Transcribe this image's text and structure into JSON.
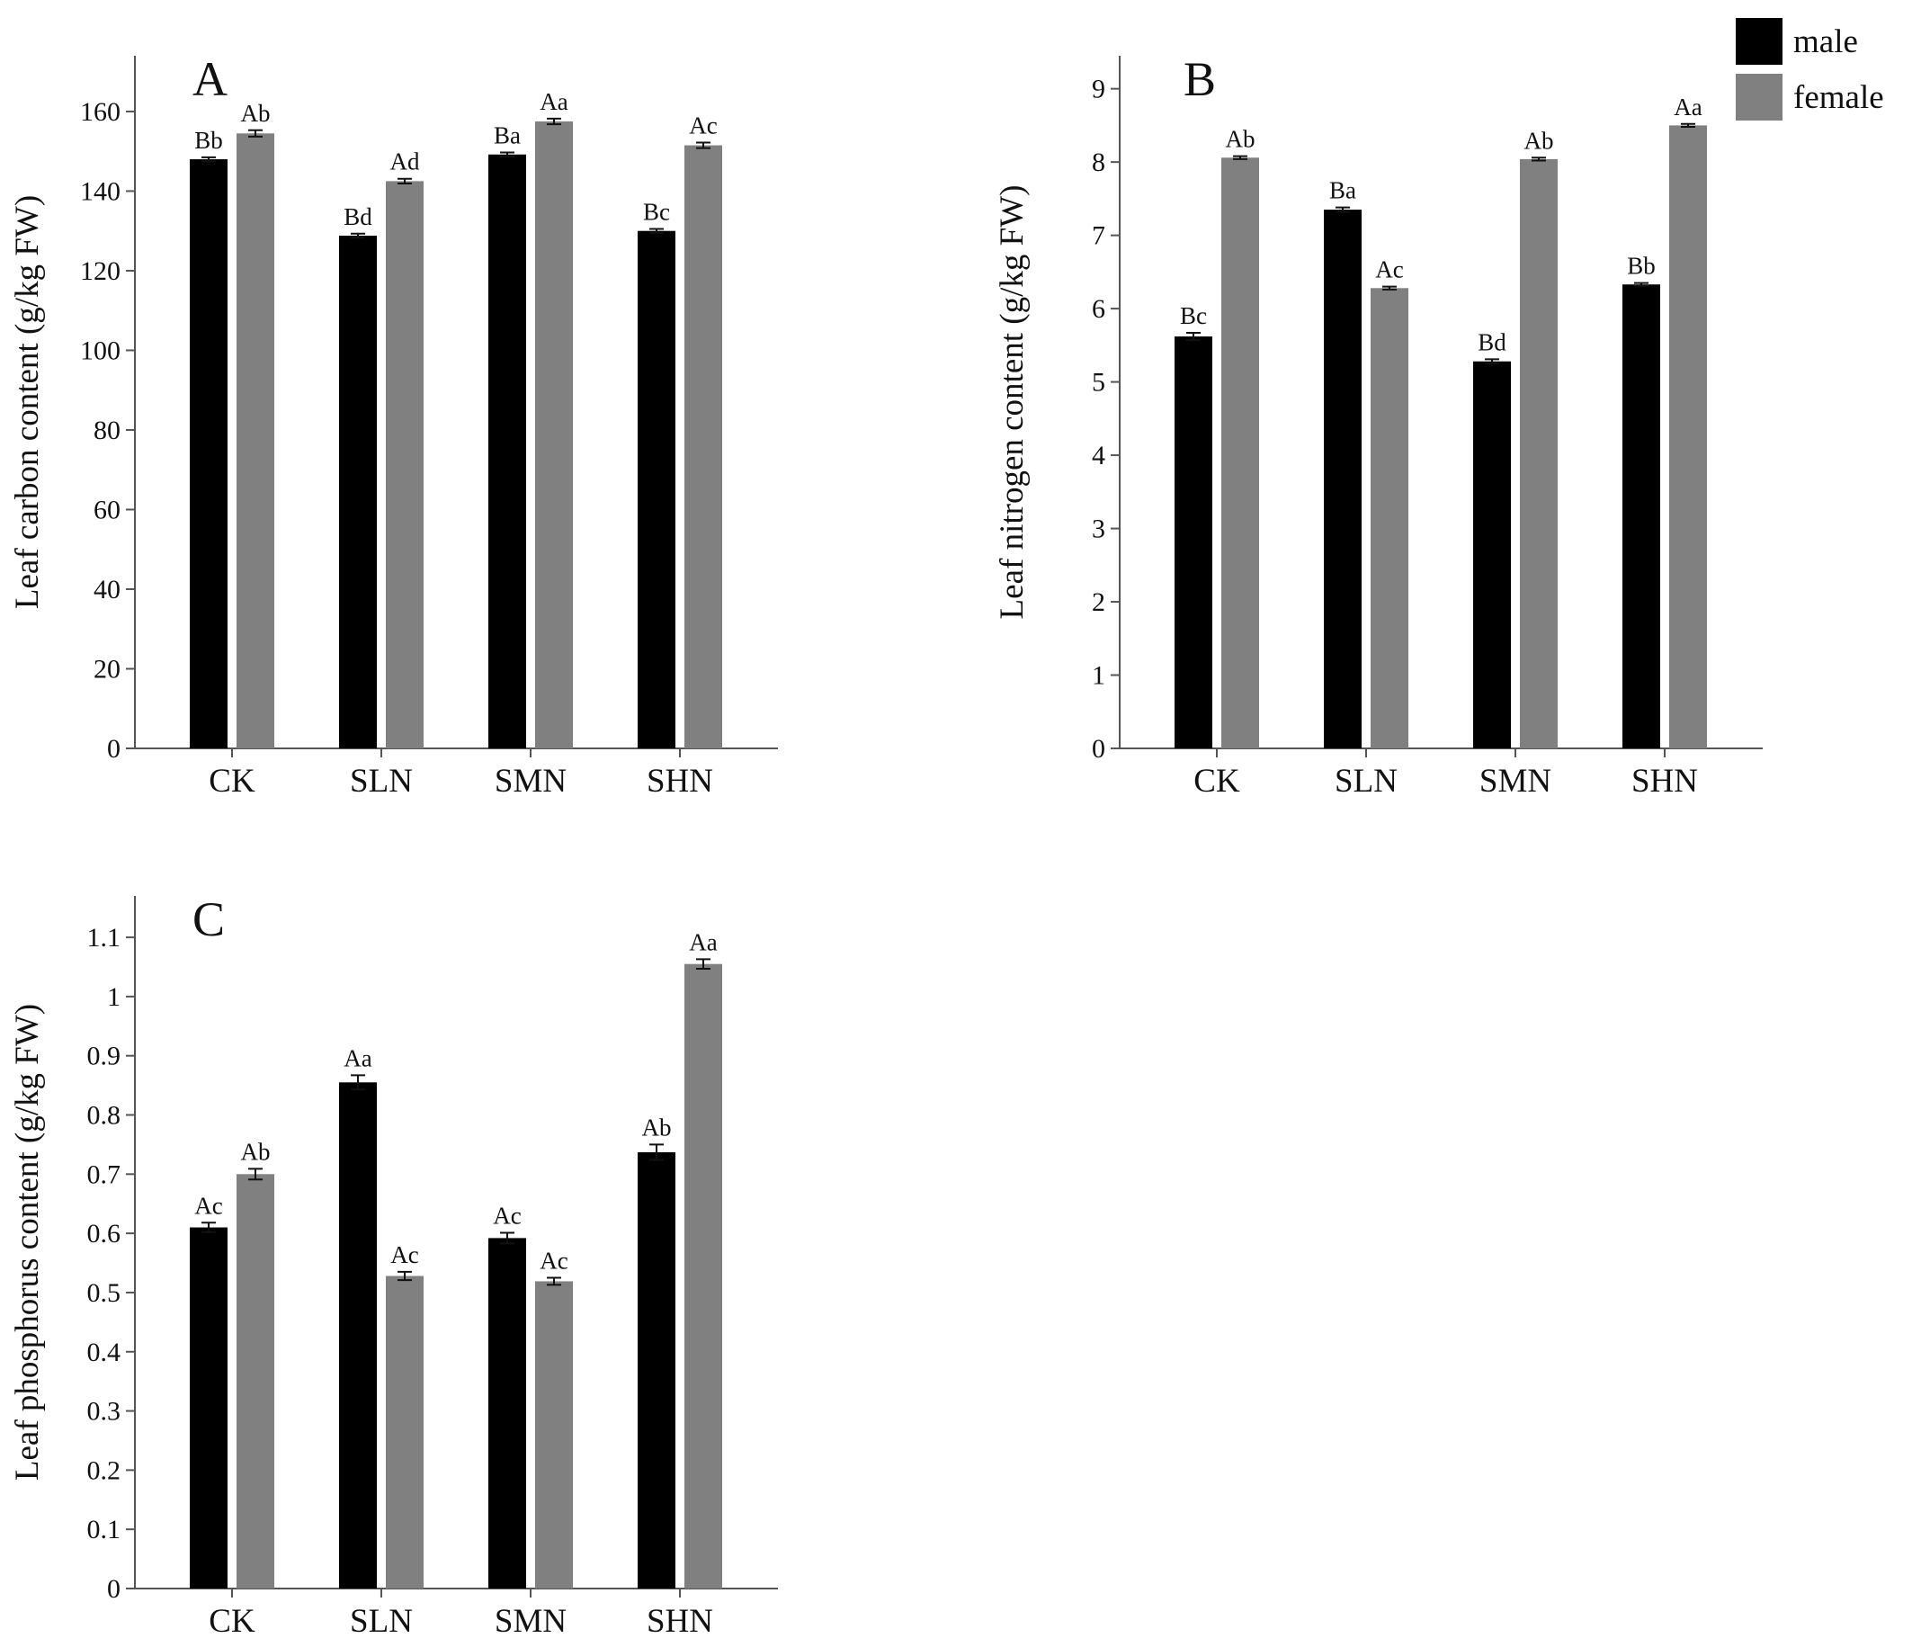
{
  "legend": {
    "entries": [
      {
        "label": "male",
        "color": "#000000"
      },
      {
        "label": "female",
        "color": "#808080"
      }
    ],
    "placement": "top-right"
  },
  "chart_data": [
    {
      "panel": "A",
      "type": "bar",
      "categories": [
        "CK",
        "SLN",
        "SMN",
        "SHN"
      ],
      "series": [
        {
          "name": "male",
          "color": "#000000",
          "values": [
            148,
            128.8,
            149.2,
            130
          ],
          "errors": [
            0.5,
            0.5,
            0.5,
            0.5
          ],
          "labels": [
            "Bb",
            "Bd",
            "Ba",
            "Bc"
          ]
        },
        {
          "name": "female",
          "color": "#808080",
          "values": [
            154.5,
            142.5,
            157.5,
            151.5
          ],
          "errors": [
            0.8,
            0.6,
            0.7,
            0.7
          ],
          "labels": [
            "Ab",
            "Ad",
            "Aa",
            "Ac"
          ]
        }
      ],
      "ylabel": "Leaf carbon content (g/kg FW)",
      "ylim": [
        0,
        174
      ],
      "yticks": [
        "0",
        "20",
        "40",
        "60",
        "80",
        "100",
        "120",
        "140",
        "160"
      ],
      "ytick_values": [
        0,
        20,
        40,
        60,
        80,
        100,
        120,
        140,
        160
      ]
    },
    {
      "panel": "B",
      "type": "bar",
      "categories": [
        "CK",
        "SLN",
        "SMN",
        "SHN"
      ],
      "series": [
        {
          "name": "male",
          "color": "#000000",
          "values": [
            5.62,
            7.35,
            5.28,
            6.33
          ],
          "errors": [
            0.05,
            0.03,
            0.03,
            0.02
          ],
          "labels": [
            "Bc",
            "Ba",
            "Bd",
            "Bb"
          ]
        },
        {
          "name": "female",
          "color": "#808080",
          "values": [
            8.06,
            6.28,
            8.04,
            8.5
          ],
          "errors": [
            0.02,
            0.02,
            0.02,
            0.02
          ],
          "labels": [
            "Ab",
            "Ac",
            "Ab",
            "Aa"
          ]
        }
      ],
      "ylabel": "Leaf nitrogen content (g/kg FW)",
      "ylim": [
        0,
        9.45
      ],
      "yticks": [
        "0",
        "1",
        "2",
        "3",
        "4",
        "5",
        "6",
        "7",
        "8",
        "9"
      ],
      "ytick_values": [
        0,
        1,
        2,
        3,
        4,
        5,
        6,
        7,
        8,
        9
      ]
    },
    {
      "panel": "C",
      "type": "bar",
      "categories": [
        "CK",
        "SLN",
        "SMN",
        "SHN"
      ],
      "series": [
        {
          "name": "male",
          "color": "#000000",
          "values": [
            0.61,
            0.855,
            0.592,
            0.737
          ],
          "errors": [
            0.008,
            0.012,
            0.009,
            0.013
          ],
          "labels": [
            "Ac",
            "Aa",
            "Ac",
            "Ab"
          ]
        },
        {
          "name": "female",
          "color": "#808080",
          "values": [
            0.7,
            0.528,
            0.519,
            1.055
          ],
          "errors": [
            0.009,
            0.007,
            0.006,
            0.008
          ],
          "labels": [
            "Ab",
            "Ac",
            "Ac",
            "Aa"
          ]
        }
      ],
      "ylabel": "Leaf phosphorus content (g/kg FW)",
      "ylim": [
        0,
        1.17
      ],
      "yticks": [
        "0",
        "0.1",
        "0.2",
        "0.3",
        "0.4",
        "0.5",
        "0.6",
        "0.7",
        "0.8",
        "0.9",
        "1",
        "1.1"
      ],
      "ytick_values": [
        0,
        0.1,
        0.2,
        0.3,
        0.4,
        0.5,
        0.6,
        0.7,
        0.8,
        0.9,
        1.0,
        1.1
      ]
    }
  ]
}
